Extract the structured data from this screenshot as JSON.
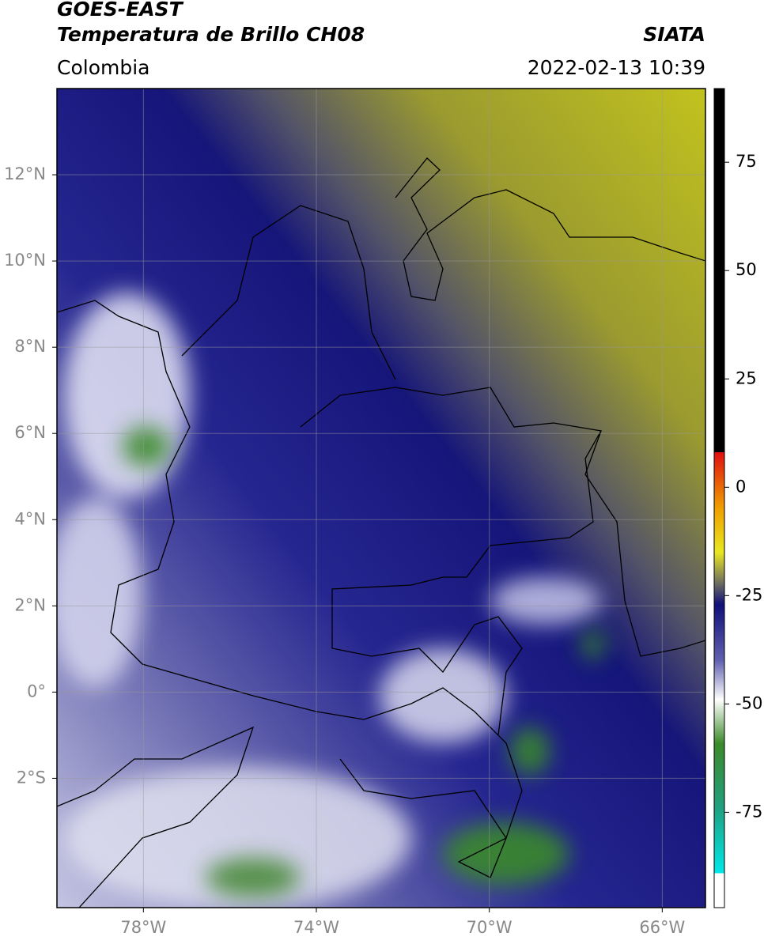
{
  "header": {
    "title": "GOES-EAST",
    "subtitle": "Temperatura de Brillo CH08",
    "region": "Colombia",
    "source": "SIATA",
    "datetime": "2022-02-13 10:39"
  },
  "map": {
    "xlim": [
      -80,
      -65
    ],
    "ylim": [
      -5,
      14
    ],
    "xticks": [
      {
        "value": -78,
        "label": "78°W"
      },
      {
        "value": -74,
        "label": "74°W"
      },
      {
        "value": -70,
        "label": "70°W"
      },
      {
        "value": -66,
        "label": "66°W"
      }
    ],
    "yticks": [
      {
        "value": 12,
        "label": "12°N"
      },
      {
        "value": 10,
        "label": "10°N"
      },
      {
        "value": 8,
        "label": "8°N"
      },
      {
        "value": 6,
        "label": "6°N"
      },
      {
        "value": 4,
        "label": "4°N"
      },
      {
        "value": 2,
        "label": "2°N"
      },
      {
        "value": 0,
        "label": "0°"
      },
      {
        "value": -2,
        "label": "2°S"
      }
    ]
  },
  "colorbar": {
    "lim": [
      -97,
      92
    ],
    "ticks": [
      75,
      50,
      25,
      0,
      -25,
      -50,
      -75
    ]
  }
}
